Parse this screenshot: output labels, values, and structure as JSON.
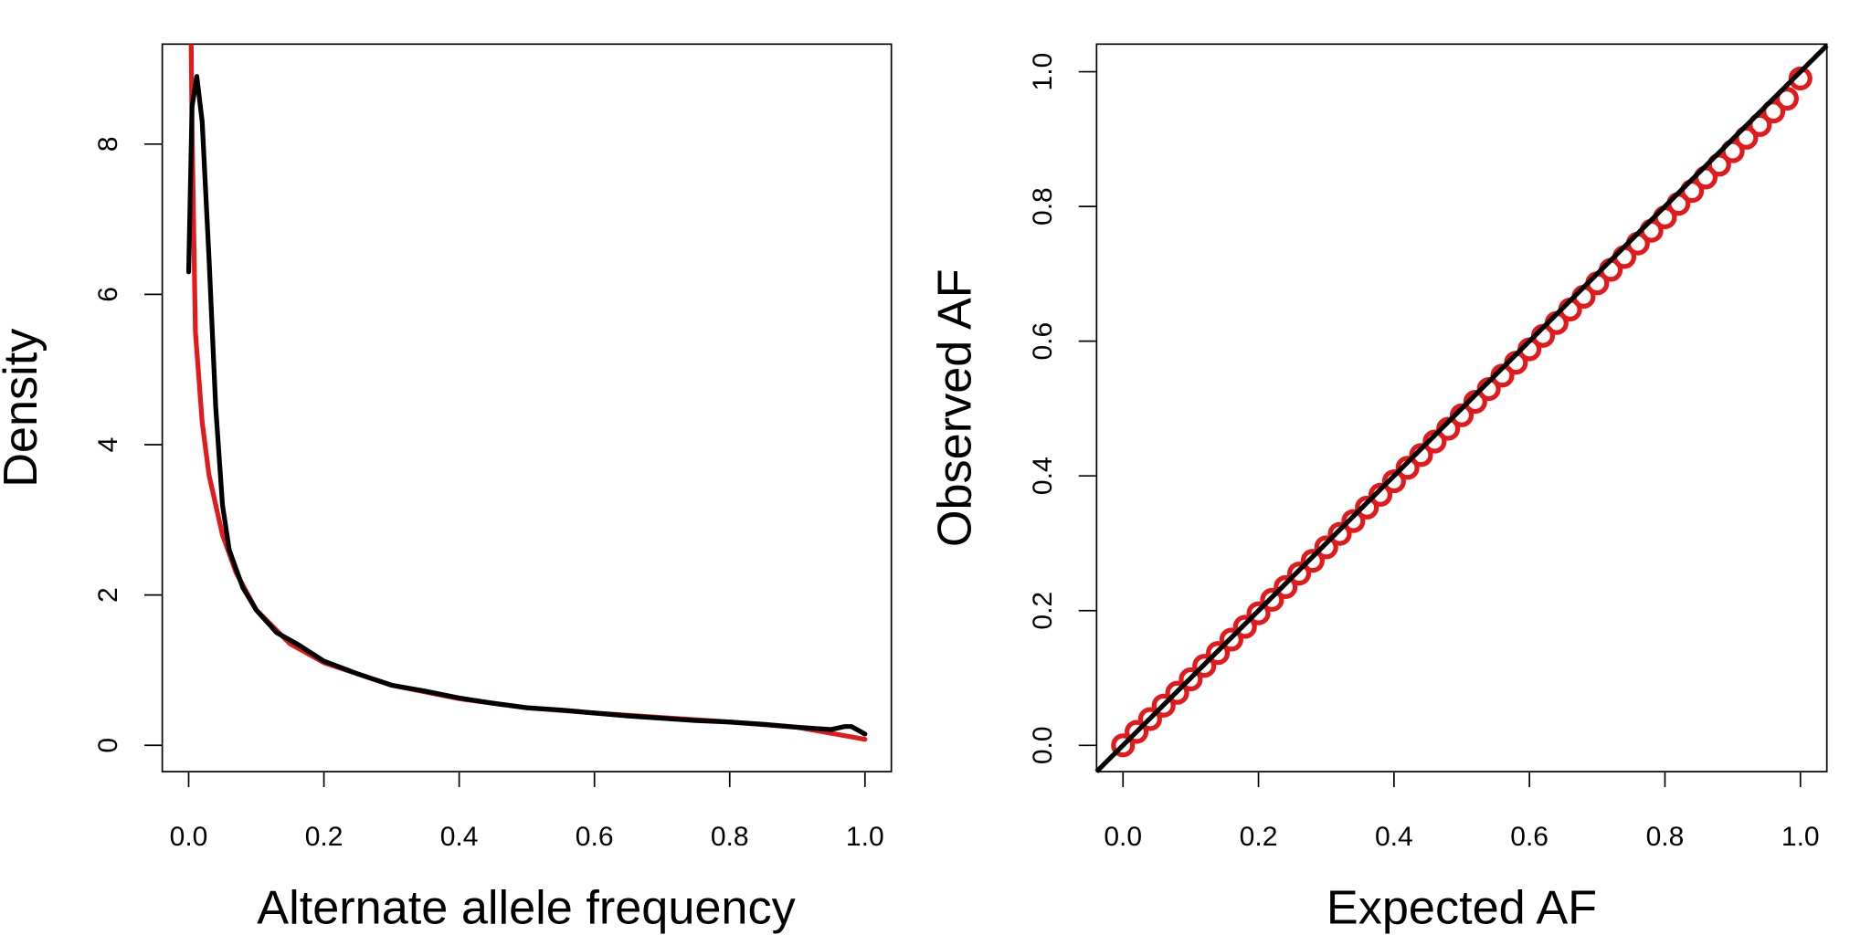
{
  "chart_data": [
    {
      "type": "line",
      "x_label": "Alternate allele frequency",
      "y_label": "Density",
      "xlim": [
        -0.039,
        1.039
      ],
      "ylim": [
        -0.35,
        9.33
      ],
      "xticks": [
        {
          "value": 0,
          "label": "0.0"
        },
        0.2,
        0.4,
        0.6,
        0.8,
        {
          "value": 1,
          "label": "1.0"
        }
      ],
      "yticks": [
        0,
        2,
        4,
        6,
        8
      ],
      "series": [
        {
          "color": "#e31a1c",
          "x": [
            0.003,
            0.005,
            0.01,
            0.02,
            0.03,
            0.05,
            0.07,
            0.1,
            0.15,
            0.2,
            0.3,
            0.4,
            0.5,
            0.6,
            0.7,
            0.8,
            0.9,
            1.0
          ],
          "values": [
            10,
            8.2,
            5.5,
            4.3,
            3.6,
            2.8,
            2.3,
            1.8,
            1.35,
            1.1,
            0.8,
            0.62,
            0.5,
            0.43,
            0.37,
            0.31,
            0.24,
            0.08
          ]
        },
        {
          "color": "#000000",
          "x": [
            0,
            0.005,
            0.012,
            0.02,
            0.03,
            0.04,
            0.05,
            0.06,
            0.08,
            0.1,
            0.13,
            0.16,
            0.2,
            0.25,
            0.3,
            0.35,
            0.4,
            0.45,
            0.5,
            0.55,
            0.6,
            0.65,
            0.7,
            0.75,
            0.8,
            0.85,
            0.9,
            0.95,
            0.97,
            0.98,
            1.0
          ],
          "values": [
            6.3,
            8.5,
            8.9,
            8.3,
            6.5,
            4.5,
            3.2,
            2.6,
            2.1,
            1.8,
            1.5,
            1.35,
            1.12,
            0.95,
            0.8,
            0.72,
            0.63,
            0.56,
            0.5,
            0.47,
            0.43,
            0.39,
            0.36,
            0.33,
            0.31,
            0.28,
            0.24,
            0.21,
            0.25,
            0.25,
            0.15
          ]
        }
      ]
    },
    {
      "type": "scatter",
      "x_label": "Expected AF",
      "y_label": "Observed AF",
      "xlim": [
        -0.039,
        1.039
      ],
      "ylim": [
        -0.039,
        1.041
      ],
      "xticks": [
        {
          "value": 0,
          "label": "0.0"
        },
        0.2,
        0.4,
        0.6,
        0.8,
        {
          "value": 1,
          "label": "1.0"
        }
      ],
      "yticks": [
        {
          "value": 0,
          "label": "0.0"
        },
        0.2,
        0.4,
        0.6,
        0.8,
        {
          "value": 1,
          "label": "1.0"
        }
      ],
      "color": "#e31a1c",
      "reference_line": {
        "intercept": 0,
        "slope": 1,
        "color": "#000000"
      },
      "x": [
        0,
        0.02,
        0.04,
        0.06,
        0.08,
        0.1,
        0.12,
        0.14,
        0.16,
        0.18,
        0.2,
        0.22,
        0.24,
        0.26,
        0.28,
        0.3,
        0.32,
        0.34,
        0.36,
        0.38,
        0.4,
        0.42,
        0.44,
        0.46,
        0.48,
        0.5,
        0.52,
        0.54,
        0.56,
        0.58,
        0.6,
        0.62,
        0.64,
        0.66,
        0.68,
        0.7,
        0.72,
        0.74,
        0.76,
        0.78,
        0.8,
        0.82,
        0.84,
        0.86,
        0.88,
        0.9,
        0.92,
        0.94,
        0.96,
        0.98,
        1.0
      ],
      "values": [
        0,
        0.02,
        0.039,
        0.059,
        0.078,
        0.098,
        0.118,
        0.137,
        0.157,
        0.176,
        0.196,
        0.216,
        0.235,
        0.255,
        0.274,
        0.294,
        0.314,
        0.333,
        0.353,
        0.372,
        0.392,
        0.412,
        0.431,
        0.451,
        0.47,
        0.49,
        0.51,
        0.529,
        0.549,
        0.568,
        0.588,
        0.608,
        0.627,
        0.647,
        0.666,
        0.686,
        0.706,
        0.725,
        0.745,
        0.764,
        0.784,
        0.804,
        0.823,
        0.843,
        0.862,
        0.882,
        0.902,
        0.921,
        0.941,
        0.96,
        0.99
      ]
    }
  ]
}
